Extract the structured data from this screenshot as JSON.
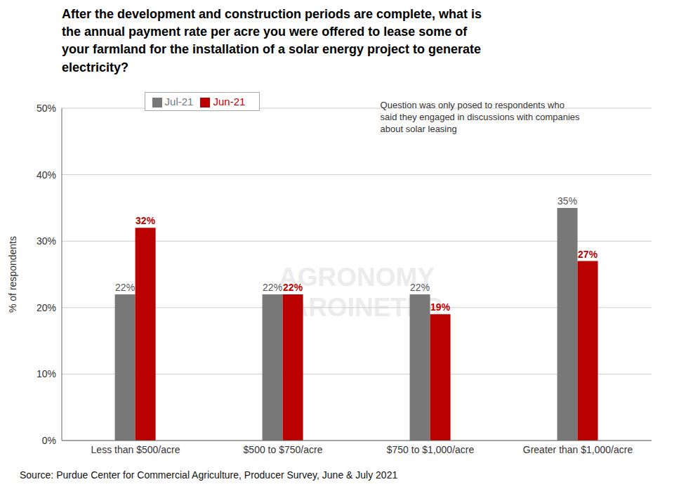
{
  "chart_data": {
    "type": "bar",
    "title": "After the development and construction periods are complete, what is\nthe annual payment rate per acre you were offered to lease some of\nyour farmland for the installation of a solar energy project to generate\nelectricity?",
    "categories": [
      "Less than $500/acre",
      "$500 to $750/acre",
      "$750 to $1,000/acre",
      "Greater than $1,000/acre"
    ],
    "series": [
      {
        "name": "Jul-21",
        "color": "#787878",
        "values": [
          22,
          22,
          22,
          35
        ],
        "value_labels": [
          "22%",
          "22%",
          "22%",
          "35%"
        ]
      },
      {
        "name": "Jun-21",
        "color": "#bb0000",
        "values": [
          32,
          22,
          19,
          27
        ],
        "value_labels": [
          "32%",
          "22%",
          "19%",
          "27%"
        ]
      }
    ],
    "y_label": "% of respondents",
    "ylim": [
      0,
      50
    ],
    "yticks": [
      {
        "value": 0,
        "label": "0%"
      },
      {
        "value": 10,
        "label": "10%"
      },
      {
        "value": 20,
        "label": "20%"
      },
      {
        "value": 30,
        "label": "30%"
      },
      {
        "value": 40,
        "label": "40%"
      },
      {
        "value": 50,
        "label": "50%"
      }
    ],
    "grid": true,
    "legend": "upper left",
    "data_labels": true,
    "annotation": "Question was only posed to respondents who\nsaid they engaged in discussions with companies\nabout solar leasing",
    "watermark": "AGRONOMY\nBAROINETER",
    "source": "Source: Purdue Center for Commercial Agriculture, Producer Survey, June & July 2021"
  }
}
